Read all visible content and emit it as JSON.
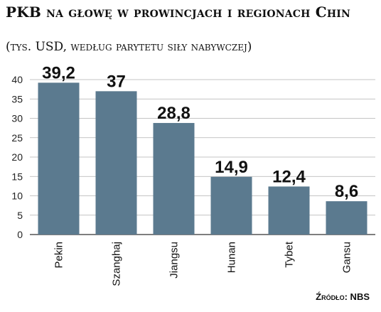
{
  "chart_data": {
    "type": "bar",
    "title": "PKB na głowę w prowincjach i regionach Chin",
    "subtitle": "(tys. USD, według parytetu siły nabywczej)",
    "categories": [
      "Pekin",
      "Szanghaj",
      "Jiangsu",
      "Hunan",
      "Tybet",
      "Gansu"
    ],
    "values": [
      39.2,
      37,
      28.8,
      14.9,
      12.4,
      8.6
    ],
    "value_labels": [
      "39,2",
      "37",
      "28,8",
      "14,9",
      "12,4",
      "8,6"
    ],
    "yticks": [
      0,
      5,
      10,
      15,
      20,
      25,
      30,
      35,
      40
    ],
    "ylim": [
      0,
      40
    ],
    "grid": true,
    "bar_color": "#5b7a8f",
    "source": "Źródło: NBS"
  }
}
